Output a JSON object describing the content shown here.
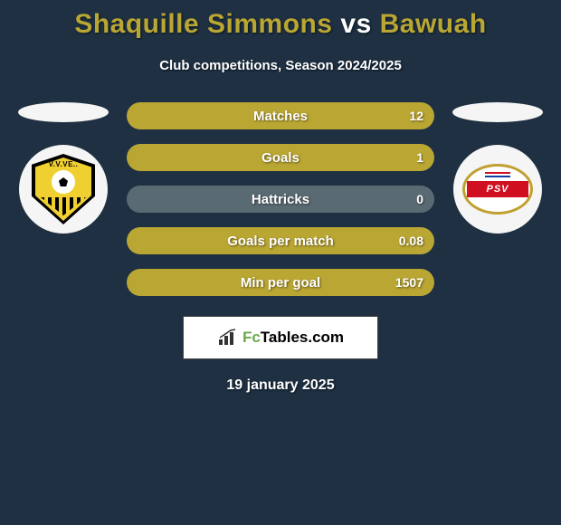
{
  "background_color": "#1e3042",
  "title": {
    "player1": "Shaquille Simmons",
    "vs": "vs",
    "player2": "Bawuah",
    "player1_color": "#baa633",
    "player2_color": "#baa633",
    "vs_color": "#ffffff",
    "fontsize": 30
  },
  "subtitle": "Club competitions, Season 2024/2025",
  "teams": {
    "left": {
      "name": "VVV-Venlo",
      "badge_bg": "#f5f5f5",
      "primary": "#f0d030",
      "secondary": "#000000"
    },
    "right": {
      "name": "PSV",
      "badge_bg": "#f5f5f5",
      "primary": "#d01020",
      "secondary": "#ffffff",
      "text": "PSV"
    }
  },
  "bars": {
    "height": 30,
    "radius": 15,
    "gap": 16,
    "label_color": "#ffffff",
    "label_fontsize": 15,
    "value_fontsize": 14,
    "player1_color": "#baa633",
    "player2_color": "#5a6a72",
    "neutral_color": "#5a6a72",
    "rows": [
      {
        "label": "Matches",
        "left": null,
        "right": "12",
        "left_pct": 100,
        "right_pct": 0,
        "mode": "single-left"
      },
      {
        "label": "Goals",
        "left": null,
        "right": "1",
        "left_pct": 100,
        "right_pct": 0,
        "mode": "single-left"
      },
      {
        "label": "Hattricks",
        "left": null,
        "right": "0",
        "left_pct": 0,
        "right_pct": 100,
        "mode": "single-neutral"
      },
      {
        "label": "Goals per match",
        "left": null,
        "right": "0.08",
        "left_pct": 100,
        "right_pct": 0,
        "mode": "single-left"
      },
      {
        "label": "Min per goal",
        "left": null,
        "right": "1507",
        "left_pct": 100,
        "right_pct": 0,
        "mode": "single-left"
      }
    ]
  },
  "watermark": {
    "text_prefix": "Fc",
    "text_suffix": "Tables.com",
    "prefix_color": "#6aa94d",
    "suffix_color": "#000000",
    "bg": "#ffffff"
  },
  "date": "19 january 2025"
}
